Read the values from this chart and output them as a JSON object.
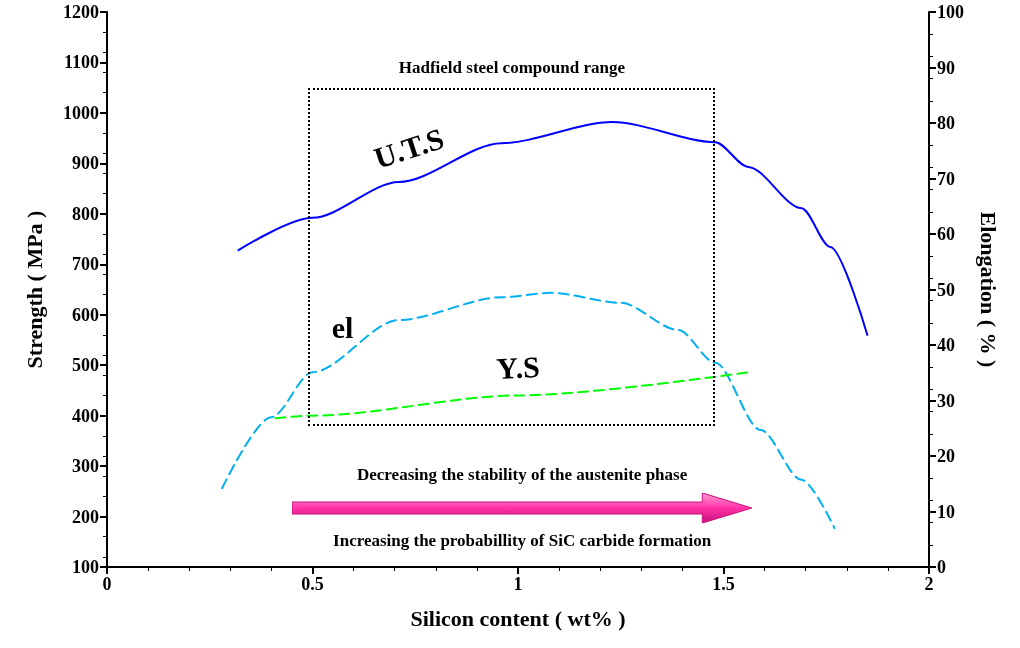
{
  "chart_data": {
    "type": "line",
    "xlabel": "Silicon content ( wt% )",
    "ylabel": "Strength ( MPa )",
    "y2label": "Elongation ( % )",
    "xlim": [
      0,
      2
    ],
    "xticks": [
      0,
      0.5,
      1,
      1.5,
      2
    ],
    "ylim": [
      100,
      1200
    ],
    "yticks": [
      100,
      200,
      300,
      400,
      500,
      600,
      700,
      800,
      900,
      1000,
      1100,
      1200
    ],
    "y2lim": [
      0,
      100
    ],
    "y2ticks": [
      0,
      10,
      20,
      30,
      40,
      50,
      60,
      70,
      80,
      90,
      100
    ],
    "grid": false,
    "legend": false,
    "marker": "none",
    "series": [
      {
        "name": "U.T.S",
        "color": "#0000ff",
        "line_style": "solid",
        "x": [
          0.32,
          0.5,
          0.71,
          0.96,
          1.23,
          1.48,
          1.56,
          1.69,
          1.76,
          1.85
        ],
        "values": [
          728,
          792,
          863,
          940,
          982,
          942,
          893,
          811,
          734,
          560
        ]
      },
      {
        "name": "el",
        "color": "#00b0f0",
        "line_style": "dashed",
        "axis": "y2",
        "x": [
          0.28,
          0.4,
          0.5,
          0.71,
          0.96,
          1.08,
          1.25,
          1.39,
          1.48,
          1.59,
          1.69,
          1.77
        ],
        "values": [
          14.2,
          27,
          35.1,
          44.5,
          48.6,
          49.4,
          47.6,
          42.7,
          36.8,
          24.7,
          15.7,
          7
        ]
      },
      {
        "name": "Y.S",
        "color": "#00ff00",
        "line_style": "dashed",
        "x": [
          0.41,
          0.5,
          1.0,
          1.56
        ],
        "values": [
          395,
          400,
          440,
          486
        ]
      }
    ],
    "annotations": [
      "Hadfield steel compound range",
      "Decreasing the stability of the austenite phase",
      "Increasing the probabillity of SiC carbide formation"
    ]
  }
}
